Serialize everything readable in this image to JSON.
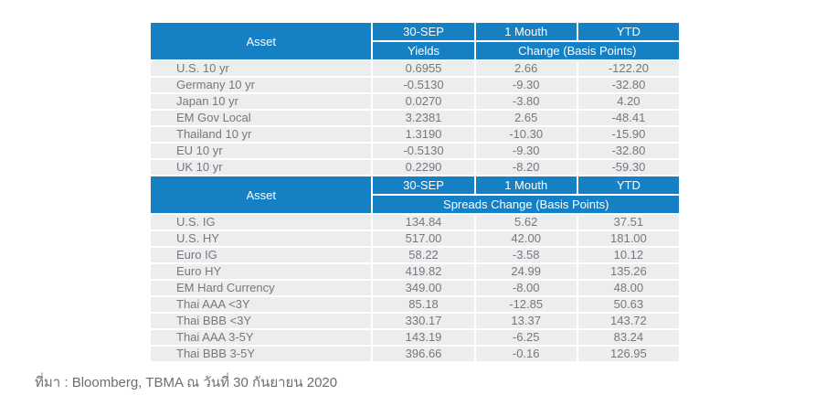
{
  "colors": {
    "header_blue": "#1580C4",
    "row_background": "#ECEDEE",
    "table_text": "#77787B",
    "footer_text": "#6D6E71"
  },
  "sections": [
    {
      "header": {
        "asset_label": "Asset",
        "columns": [
          "30-SEP",
          "1 Mouth",
          "YTD"
        ],
        "sub_yields": "Yields",
        "sub_change": "Change (Basis Points)"
      },
      "rows": [
        {
          "asset": "U.S. 10 yr",
          "sep30": "0.6955",
          "m1": "2.66",
          "ytd": "-122.20"
        },
        {
          "asset": "Germany 10 yr",
          "sep30": "-0.5130",
          "m1": "-9.30",
          "ytd": "-32.80"
        },
        {
          "asset": "Japan 10 yr",
          "sep30": "0.0270",
          "m1": "-3.80",
          "ytd": "4.20"
        },
        {
          "asset": "EM Gov Local",
          "sep30": "3.2381",
          "m1": "2.65",
          "ytd": "-48.41"
        },
        {
          "asset": "Thailand 10 yr",
          "sep30": "1.3190",
          "m1": "-10.30",
          "ytd": "-15.90"
        },
        {
          "asset": "EU 10 yr",
          "sep30": "-0.5130",
          "m1": "-9.30",
          "ytd": "-32.80"
        },
        {
          "asset": "UK 10 yr",
          "sep30": "0.2290",
          "m1": "-8.20",
          "ytd": "-59.30"
        }
      ]
    },
    {
      "header": {
        "asset_label": "Asset",
        "columns": [
          "30-SEP",
          "1 Mouth",
          "YTD"
        ],
        "sub_spreads": "Spreads Change (Basis Points)"
      },
      "rows": [
        {
          "asset": "U.S. IG",
          "sep30": "134.84",
          "m1": "5.62",
          "ytd": "37.51"
        },
        {
          "asset": "U.S. HY",
          "sep30": "517.00",
          "m1": "42.00",
          "ytd": "181.00"
        },
        {
          "asset": "Euro IG",
          "sep30": "58.22",
          "m1": "-3.58",
          "ytd": "10.12"
        },
        {
          "asset": "Euro HY",
          "sep30": "419.82",
          "m1": "24.99",
          "ytd": "135.26"
        },
        {
          "asset": "EM Hard Currency",
          "sep30": "349.00",
          "m1": "-8.00",
          "ytd": "48.00"
        },
        {
          "asset": "Thai AAA <3Y",
          "sep30": "85.18",
          "m1": "-12.85",
          "ytd": "50.63"
        },
        {
          "asset": "Thai BBB <3Y",
          "sep30": "330.17",
          "m1": "13.37",
          "ytd": "143.72"
        },
        {
          "asset": "Thai AAA 3-5Y",
          "sep30": "143.19",
          "m1": "-6.25",
          "ytd": "83.24"
        },
        {
          "asset": "Thai BBB 3-5Y",
          "sep30": "396.66",
          "m1": "-0.16",
          "ytd": "126.95"
        }
      ]
    }
  ],
  "footer": {
    "source_text": "ที่มา : Bloomberg, TBMA ณ วันที่ 30 กันยายน 2020"
  }
}
